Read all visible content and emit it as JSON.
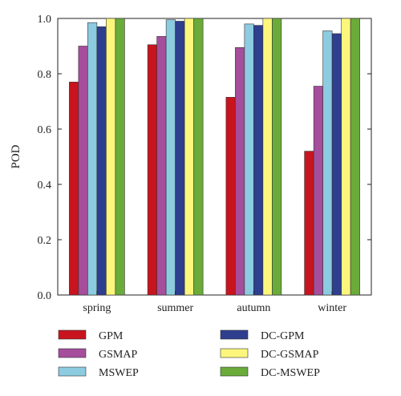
{
  "chart_data": {
    "type": "bar",
    "title": "",
    "xlabel": "",
    "ylabel": "POD",
    "ylim": [
      0,
      1.0
    ],
    "yticks": [
      "0.0",
      "0.2",
      "0.4",
      "0.6",
      "0.8",
      "1.0"
    ],
    "grid": false,
    "legend_position": "bottom",
    "categories": [
      "spring",
      "summer",
      "autumn",
      "winter"
    ],
    "series": [
      {
        "name": "GPM",
        "color": "#c8141e",
        "values": [
          0.77,
          0.905,
          0.715,
          0.52
        ]
      },
      {
        "name": "GSMAP",
        "color": "#a64d9c",
        "values": [
          0.9,
          0.935,
          0.895,
          0.755
        ]
      },
      {
        "name": "MSWEP",
        "color": "#8ccbe0",
        "values": [
          0.985,
          0.995,
          0.98,
          0.955
        ]
      },
      {
        "name": "DC-GPM",
        "color": "#2e3f8f",
        "values": [
          0.97,
          0.99,
          0.975,
          0.945
        ]
      },
      {
        "name": "DC-GSMAP",
        "color": "#fcf67c",
        "values": [
          1.0,
          1.0,
          1.0,
          1.0
        ]
      },
      {
        "name": "DC-MSWEP",
        "color": "#6aab3a",
        "values": [
          1.0,
          1.0,
          1.0,
          1.0
        ]
      }
    ]
  }
}
